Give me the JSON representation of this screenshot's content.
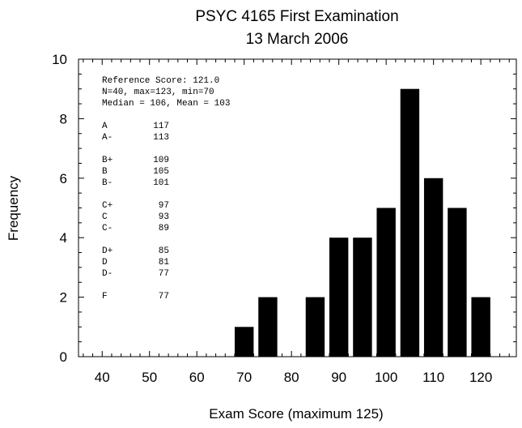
{
  "chart_data": {
    "type": "bar",
    "title": "PSYC 4165 First Examination",
    "subtitle": "13 March 2006",
    "xlabel": "Exam Score (maximum 125)",
    "ylabel": "Frequency",
    "xlim": [
      35,
      127.5
    ],
    "ylim": [
      0,
      10
    ],
    "x_ticks": [
      40,
      50,
      60,
      70,
      80,
      90,
      100,
      110,
      120
    ],
    "y_ticks": [
      0,
      2,
      4,
      6,
      8,
      10
    ],
    "bar_width": 4,
    "bars": [
      {
        "x": 70,
        "value": 1
      },
      {
        "x": 75,
        "value": 2
      },
      {
        "x": 85,
        "value": 2
      },
      {
        "x": 90,
        "value": 4
      },
      {
        "x": 95,
        "value": 4
      },
      {
        "x": 100,
        "value": 5
      },
      {
        "x": 105,
        "value": 9
      },
      {
        "x": 110,
        "value": 6
      },
      {
        "x": 115,
        "value": 5
      },
      {
        "x": 120,
        "value": 2
      }
    ],
    "grid": false,
    "color": "#000000",
    "annotation": {
      "lines": [
        "Reference Score: 121.0",
        "N=40, max=123, min=70",
        "Median = 106, Mean = 103"
      ],
      "grades": [
        [
          {
            "grade": "A",
            "cutoff": "117"
          },
          {
            "grade": "A-",
            "cutoff": "113"
          }
        ],
        [
          {
            "grade": "B+",
            "cutoff": "109"
          },
          {
            "grade": "B",
            "cutoff": "105"
          },
          {
            "grade": "B-",
            "cutoff": "101"
          }
        ],
        [
          {
            "grade": "C+",
            "cutoff": "97"
          },
          {
            "grade": "C",
            "cutoff": "93"
          },
          {
            "grade": "C-",
            "cutoff": "89"
          }
        ],
        [
          {
            "grade": "D+",
            "cutoff": "85"
          },
          {
            "grade": "D",
            "cutoff": "81"
          },
          {
            "grade": "D-",
            "cutoff": "77"
          }
        ],
        [
          {
            "grade": "F",
            "cutoff": "77"
          }
        ]
      ]
    }
  }
}
